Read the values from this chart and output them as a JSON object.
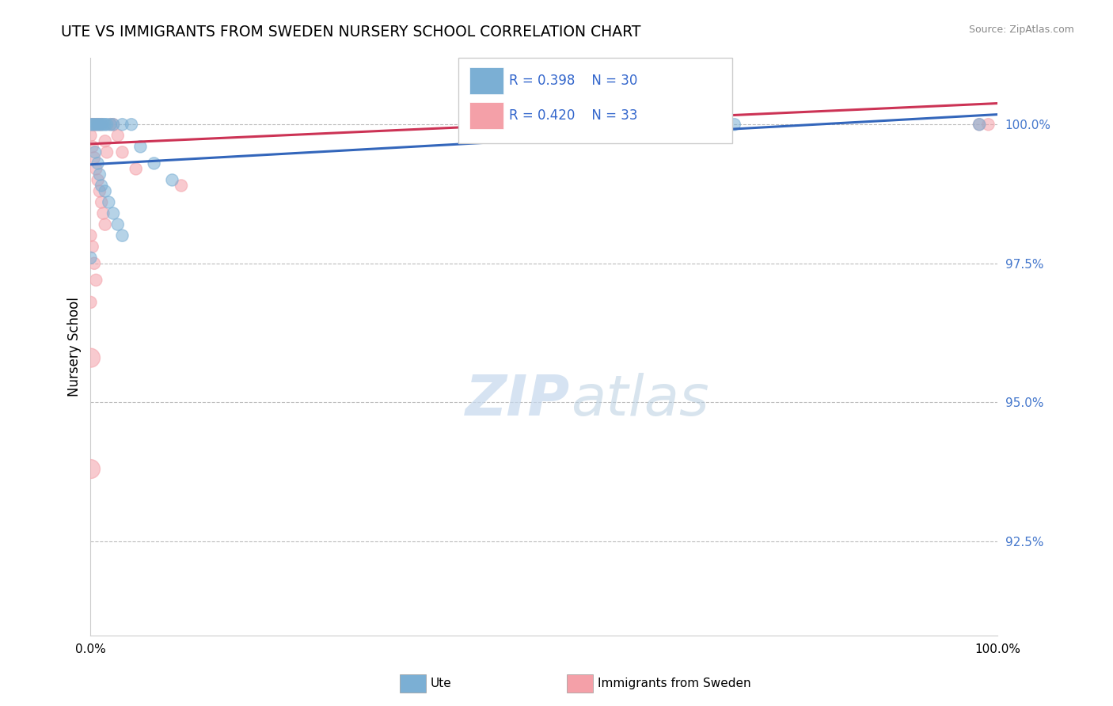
{
  "title": "UTE VS IMMIGRANTS FROM SWEDEN NURSERY SCHOOL CORRELATION CHART",
  "source": "Source: ZipAtlas.com",
  "ylabel": "Nursery School",
  "watermark_zip": "ZIP",
  "watermark_atlas": "atlas",
  "legend_R_blue": "R = 0.398",
  "legend_N_blue": "N = 30",
  "legend_R_pink": "R = 0.420",
  "legend_N_pink": "N = 33",
  "legend_label_blue": "Ute",
  "legend_label_pink": "Immigrants from Sweden",
  "blue_color": "#7BAFD4",
  "pink_color": "#F4A0A8",
  "trend_blue": "#3366BB",
  "trend_pink": "#CC3355",
  "xlim": [
    0.0,
    1.0
  ],
  "ylim": [
    90.8,
    101.2
  ],
  "y_ticks": [
    92.5,
    95.0,
    97.5,
    100.0
  ],
  "y_tick_labels": [
    "92.5%",
    "95.0%",
    "97.5%",
    "100.0%"
  ],
  "blue_trend_y0": 99.28,
  "blue_trend_y1": 100.18,
  "pink_trend_y0": 99.65,
  "pink_trend_y1": 100.38,
  "blue_points": [
    [
      0.0,
      100.0
    ],
    [
      0.002,
      100.0
    ],
    [
      0.004,
      100.0
    ],
    [
      0.006,
      100.0
    ],
    [
      0.008,
      100.0
    ],
    [
      0.01,
      100.0
    ],
    [
      0.012,
      100.0
    ],
    [
      0.014,
      100.0
    ],
    [
      0.016,
      100.0
    ],
    [
      0.018,
      100.0
    ],
    [
      0.022,
      100.0
    ],
    [
      0.025,
      100.0
    ],
    [
      0.035,
      100.0
    ],
    [
      0.045,
      100.0
    ],
    [
      0.055,
      99.6
    ],
    [
      0.07,
      99.3
    ],
    [
      0.09,
      99.0
    ],
    [
      0.005,
      99.5
    ],
    [
      0.008,
      99.3
    ],
    [
      0.01,
      99.1
    ],
    [
      0.012,
      98.9
    ],
    [
      0.016,
      98.8
    ],
    [
      0.02,
      98.6
    ],
    [
      0.025,
      98.4
    ],
    [
      0.03,
      98.2
    ],
    [
      0.035,
      98.0
    ],
    [
      0.0,
      97.6
    ],
    [
      0.49,
      100.0
    ],
    [
      0.71,
      100.0
    ],
    [
      0.98,
      100.0
    ]
  ],
  "blue_sizes": [
    120,
    120,
    120,
    120,
    120,
    120,
    120,
    120,
    120,
    120,
    120,
    120,
    120,
    120,
    120,
    120,
    120,
    120,
    120,
    120,
    120,
    120,
    120,
    120,
    120,
    120,
    120,
    120,
    120,
    120
  ],
  "pink_points": [
    [
      0.0,
      100.0
    ],
    [
      0.002,
      100.0
    ],
    [
      0.004,
      100.0
    ],
    [
      0.006,
      100.0
    ],
    [
      0.008,
      100.0
    ],
    [
      0.01,
      100.0
    ],
    [
      0.012,
      100.0
    ],
    [
      0.0,
      99.8
    ],
    [
      0.002,
      99.6
    ],
    [
      0.004,
      99.4
    ],
    [
      0.006,
      99.2
    ],
    [
      0.008,
      99.0
    ],
    [
      0.01,
      98.8
    ],
    [
      0.012,
      98.6
    ],
    [
      0.014,
      98.4
    ],
    [
      0.016,
      98.2
    ],
    [
      0.0,
      98.0
    ],
    [
      0.002,
      97.8
    ],
    [
      0.004,
      97.5
    ],
    [
      0.006,
      97.2
    ],
    [
      0.0,
      96.8
    ],
    [
      0.0,
      95.8
    ],
    [
      0.0,
      93.8
    ],
    [
      0.035,
      99.5
    ],
    [
      0.05,
      99.2
    ],
    [
      0.1,
      98.9
    ],
    [
      0.022,
      100.0
    ],
    [
      0.025,
      100.0
    ],
    [
      0.03,
      99.8
    ],
    [
      0.016,
      99.7
    ],
    [
      0.018,
      99.5
    ],
    [
      0.98,
      100.0
    ],
    [
      0.99,
      100.0
    ]
  ],
  "pink_sizes": [
    120,
    120,
    120,
    120,
    120,
    120,
    120,
    120,
    120,
    120,
    120,
    120,
    120,
    120,
    120,
    120,
    120,
    120,
    120,
    120,
    120,
    300,
    300,
    120,
    120,
    120,
    120,
    120,
    120,
    120,
    120,
    120,
    120
  ]
}
